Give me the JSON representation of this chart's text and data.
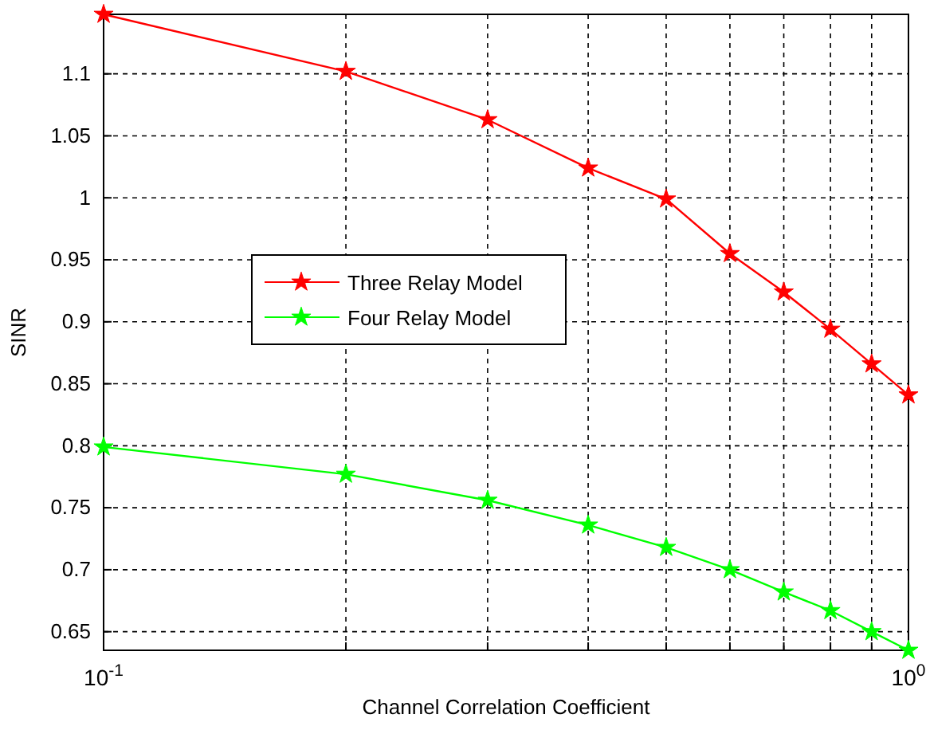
{
  "chart_data": {
    "type": "line",
    "xlabel": "Channel Correlation Coefficient",
    "ylabel": "SINR",
    "x": [
      0.1,
      0.2,
      0.3,
      0.4,
      0.5,
      0.6,
      0.7,
      0.8,
      0.9,
      1.0
    ],
    "series": [
      {
        "name": "Three Relay Model",
        "color": "#ff0000",
        "values": [
          1.148,
          1.102,
          1.063,
          1.024,
          0.999,
          0.955,
          0.924,
          0.894,
          0.866,
          0.841
        ]
      },
      {
        "name": "Four Relay Model",
        "color": "#00ff00",
        "values": [
          0.799,
          0.777,
          0.756,
          0.736,
          0.718,
          0.7,
          0.682,
          0.667,
          0.65,
          0.635
        ]
      }
    ],
    "log": "x",
    "xlim": [
      0.1,
      1
    ],
    "ylim": [
      0.635,
      1.148
    ],
    "xticks": [
      {
        "value": 0.1,
        "label": "10$^{-1}$"
      },
      {
        "value": 0.2,
        "label": null
      },
      {
        "value": 0.3,
        "label": null
      },
      {
        "value": 0.4,
        "label": null
      },
      {
        "value": 0.5,
        "label": null
      },
      {
        "value": 0.6,
        "label": null
      },
      {
        "value": 0.7,
        "label": null
      },
      {
        "value": 0.8,
        "label": null
      },
      {
        "value": 0.9,
        "label": null
      },
      {
        "value": 1,
        "label": "10$^{0}$"
      }
    ],
    "yticks": [
      0.65,
      0.7,
      0.75,
      0.8,
      0.85,
      0.9,
      0.95,
      1,
      1.05,
      1.1
    ],
    "grid": true,
    "legend": "center left",
    "marker": "star",
    "line_style": "solid"
  }
}
